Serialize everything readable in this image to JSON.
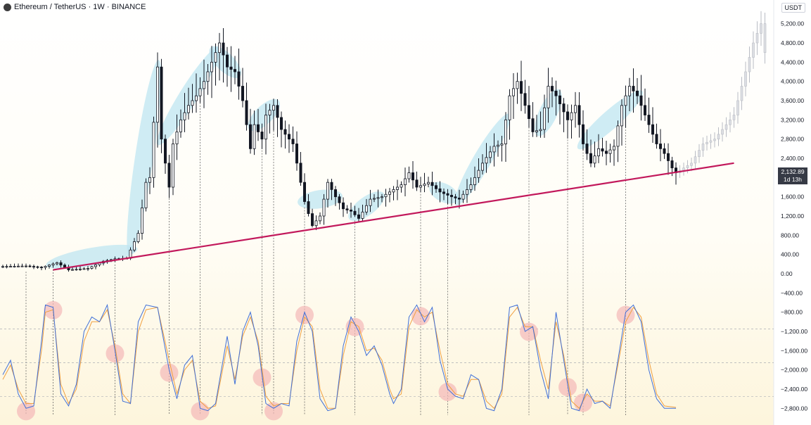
{
  "header": {
    "symbol": "Ethereum / TetherUS · 1W · BINANCE"
  },
  "currency": "USDT",
  "price_tag": {
    "price": "2,132.89",
    "countdown": "1d 13h"
  },
  "colors": {
    "candle": "#131722",
    "highlight": "#bfe6f2",
    "trendline": "#c2185b",
    "stoch_k": "#3f6fd8",
    "stoch_d": "#f0a040",
    "circle": "#f4b8b8"
  },
  "chart_data": {
    "type": "candlestick",
    "yticks": [
      "5,200.00",
      "4,800.00",
      "4,400.00",
      "4,000.00",
      "3,600.00",
      "3,200.00",
      "2,800.00",
      "2,400.00",
      "2,000.00",
      "1,600.00",
      "1,200.00",
      "800.00",
      "400.00",
      "0.00",
      "−400.00",
      "−800.00",
      "−1,200.00",
      "−1,600.00",
      "−2,000.00",
      "−2,400.00",
      "−2,800.00"
    ],
    "ylim": [
      -3000,
      5400
    ],
    "price_path": [
      [
        0,
        150
      ],
      [
        6,
        160
      ],
      [
        10,
        130
      ],
      [
        14,
        230
      ],
      [
        17,
        80
      ],
      [
        22,
        110
      ],
      [
        26,
        260
      ],
      [
        29,
        310
      ],
      [
        32,
        320
      ],
      [
        35,
        840
      ],
      [
        37,
        1900
      ],
      [
        38,
        2000
      ],
      [
        40,
        4300
      ],
      [
        41,
        2800
      ],
      [
        43,
        1800
      ],
      [
        44,
        2700
      ],
      [
        46,
        3200
      ],
      [
        48,
        3500
      ],
      [
        50,
        3700
      ],
      [
        52,
        4000
      ],
      [
        54,
        4400
      ],
      [
        56,
        4800
      ],
      [
        58,
        4300
      ],
      [
        60,
        4200
      ],
      [
        62,
        3600
      ],
      [
        64,
        2600
      ],
      [
        65,
        3100
      ],
      [
        67,
        2800
      ],
      [
        68,
        3300
      ],
      [
        70,
        3500
      ],
      [
        72,
        3000
      ],
      [
        75,
        2700
      ],
      [
        78,
        1500
      ],
      [
        80,
        1000
      ],
      [
        82,
        1200
      ],
      [
        84,
        1900
      ],
      [
        86,
        1600
      ],
      [
        88,
        1350
      ],
      [
        90,
        1300
      ],
      [
        92,
        1150
      ],
      [
        95,
        1550
      ],
      [
        98,
        1600
      ],
      [
        100,
        1700
      ],
      [
        103,
        1850
      ],
      [
        105,
        2100
      ],
      [
        107,
        1800
      ],
      [
        110,
        1900
      ],
      [
        113,
        1700
      ],
      [
        116,
        1600
      ],
      [
        118,
        1550
      ],
      [
        121,
        1850
      ],
      [
        124,
        2300
      ],
      [
        127,
        2650
      ],
      [
        129,
        2700
      ],
      [
        131,
        3700
      ],
      [
        133,
        4000
      ],
      [
        135,
        3500
      ],
      [
        137,
        2950
      ],
      [
        139,
        3000
      ],
      [
        141,
        3900
      ],
      [
        143,
        3700
      ],
      [
        146,
        3200
      ],
      [
        148,
        3500
      ],
      [
        150,
        2700
      ],
      [
        152,
        2300
      ],
      [
        154,
        2600
      ],
      [
        156,
        2500
      ],
      [
        158,
        2650
      ],
      [
        160,
        3500
      ],
      [
        162,
        3900
      ],
      [
        164,
        3700
      ],
      [
        166,
        3300
      ],
      [
        169,
        2700
      ],
      [
        171,
        2500
      ],
      [
        173,
        2200
      ],
      [
        174,
        2100
      ]
    ],
    "projection_path": [
      [
        174,
        2100
      ],
      [
        178,
        2300
      ],
      [
        181,
        2700
      ],
      [
        184,
        2800
      ],
      [
        186,
        3000
      ],
      [
        189,
        3300
      ],
      [
        192,
        4200
      ],
      [
        194,
        4800
      ],
      [
        196,
        5200
      ],
      [
        197,
        4600
      ]
    ],
    "trendline": {
      "from": [
        13,
        80
      ],
      "to": [
        189,
        2300
      ]
    },
    "highlights": [
      {
        "from": 13,
        "to": 33
      },
      {
        "from": 33,
        "to": 40
      },
      {
        "from": 41,
        "to": 55
      },
      {
        "from": 55,
        "to": 60
      },
      {
        "from": 65,
        "to": 70
      },
      {
        "from": 78,
        "to": 86
      },
      {
        "from": 91,
        "to": 97
      },
      {
        "from": 112,
        "to": 116
      },
      {
        "from": 118,
        "to": 130
      },
      {
        "from": 139,
        "to": 143
      },
      {
        "from": 150,
        "to": 164
      }
    ],
    "stoch_lower": -2850,
    "stoch_upper": -650,
    "stoch_k": [
      [
        0,
        -2100
      ],
      [
        2,
        -1800
      ],
      [
        4,
        -2500
      ],
      [
        6,
        -2800
      ],
      [
        8,
        -2750
      ],
      [
        10,
        -1400
      ],
      [
        11,
        -650
      ],
      [
        13,
        -700
      ],
      [
        15,
        -2500
      ],
      [
        17,
        -2750
      ],
      [
        19,
        -2300
      ],
      [
        21,
        -1200
      ],
      [
        23,
        -900
      ],
      [
        25,
        -1000
      ],
      [
        27,
        -650
      ],
      [
        29,
        -1600
      ],
      [
        31,
        -2650
      ],
      [
        33,
        -2700
      ],
      [
        35,
        -1000
      ],
      [
        37,
        -650
      ],
      [
        40,
        -700
      ],
      [
        43,
        -2000
      ],
      [
        45,
        -2600
      ],
      [
        47,
        -1900
      ],
      [
        49,
        -1700
      ],
      [
        51,
        -2800
      ],
      [
        53,
        -2850
      ],
      [
        55,
        -2700
      ],
      [
        58,
        -1300
      ],
      [
        60,
        -2300
      ],
      [
        62,
        -1200
      ],
      [
        64,
        -800
      ],
      [
        66,
        -1500
      ],
      [
        68,
        -2700
      ],
      [
        70,
        -2800
      ],
      [
        72,
        -2700
      ],
      [
        74,
        -2750
      ],
      [
        76,
        -1400
      ],
      [
        78,
        -800
      ],
      [
        80,
        -1200
      ],
      [
        82,
        -2600
      ],
      [
        84,
        -2850
      ],
      [
        86,
        -2800
      ],
      [
        88,
        -1500
      ],
      [
        90,
        -900
      ],
      [
        92,
        -1200
      ],
      [
        94,
        -1700
      ],
      [
        96,
        -1500
      ],
      [
        98,
        -1900
      ],
      [
        100,
        -2500
      ],
      [
        101,
        -2700
      ],
      [
        103,
        -2400
      ],
      [
        105,
        -900
      ],
      [
        107,
        -650
      ],
      [
        109,
        -1000
      ],
      [
        111,
        -700
      ],
      [
        113,
        -1800
      ],
      [
        115,
        -2400
      ],
      [
        117,
        -2550
      ],
      [
        119,
        -2600
      ],
      [
        121,
        -2100
      ],
      [
        123,
        -2200
      ],
      [
        125,
        -2800
      ],
      [
        127,
        -2850
      ],
      [
        129,
        -2400
      ],
      [
        131,
        -700
      ],
      [
        133,
        -650
      ],
      [
        135,
        -1200
      ],
      [
        137,
        -1100
      ],
      [
        139,
        -2000
      ],
      [
        141,
        -2600
      ],
      [
        143,
        -800
      ],
      [
        145,
        -1800
      ],
      [
        147,
        -2800
      ],
      [
        149,
        -2850
      ],
      [
        151,
        -2400
      ],
      [
        153,
        -2700
      ],
      [
        155,
        -2650
      ],
      [
        157,
        -2800
      ],
      [
        159,
        -1800
      ],
      [
        161,
        -800
      ],
      [
        163,
        -650
      ],
      [
        165,
        -1000
      ],
      [
        167,
        -2000
      ],
      [
        169,
        -2600
      ],
      [
        171,
        -2800
      ],
      [
        174,
        -2800
      ]
    ],
    "stoch_d": [
      [
        0,
        -2200
      ],
      [
        2,
        -1900
      ],
      [
        4,
        -2400
      ],
      [
        6,
        -2700
      ],
      [
        8,
        -2700
      ],
      [
        10,
        -1600
      ],
      [
        11,
        -800
      ],
      [
        13,
        -750
      ],
      [
        15,
        -2300
      ],
      [
        17,
        -2700
      ],
      [
        19,
        -2400
      ],
      [
        21,
        -1400
      ],
      [
        23,
        -1000
      ],
      [
        25,
        -1000
      ],
      [
        27,
        -750
      ],
      [
        29,
        -1500
      ],
      [
        31,
        -2500
      ],
      [
        33,
        -2700
      ],
      [
        35,
        -1200
      ],
      [
        37,
        -750
      ],
      [
        40,
        -700
      ],
      [
        43,
        -1800
      ],
      [
        45,
        -2500
      ],
      [
        47,
        -2000
      ],
      [
        49,
        -1800
      ],
      [
        51,
        -2650
      ],
      [
        53,
        -2800
      ],
      [
        55,
        -2750
      ],
      [
        58,
        -1500
      ],
      [
        60,
        -2200
      ],
      [
        62,
        -1300
      ],
      [
        64,
        -900
      ],
      [
        66,
        -1400
      ],
      [
        68,
        -2550
      ],
      [
        70,
        -2750
      ],
      [
        72,
        -2700
      ],
      [
        74,
        -2700
      ],
      [
        76,
        -1600
      ],
      [
        78,
        -900
      ],
      [
        80,
        -1100
      ],
      [
        82,
        -2400
      ],
      [
        84,
        -2800
      ],
      [
        86,
        -2800
      ],
      [
        88,
        -1700
      ],
      [
        90,
        -1000
      ],
      [
        92,
        -1100
      ],
      [
        94,
        -1600
      ],
      [
        96,
        -1550
      ],
      [
        98,
        -1800
      ],
      [
        100,
        -2400
      ],
      [
        101,
        -2600
      ],
      [
        103,
        -2500
      ],
      [
        105,
        -1100
      ],
      [
        107,
        -750
      ],
      [
        109,
        -900
      ],
      [
        111,
        -800
      ],
      [
        113,
        -1600
      ],
      [
        115,
        -2300
      ],
      [
        117,
        -2500
      ],
      [
        119,
        -2550
      ],
      [
        121,
        -2200
      ],
      [
        123,
        -2200
      ],
      [
        125,
        -2650
      ],
      [
        127,
        -2800
      ],
      [
        129,
        -2500
      ],
      [
        131,
        -900
      ],
      [
        133,
        -700
      ],
      [
        135,
        -1100
      ],
      [
        137,
        -1100
      ],
      [
        139,
        -1800
      ],
      [
        141,
        -2400
      ],
      [
        143,
        -1000
      ],
      [
        145,
        -1700
      ],
      [
        147,
        -2650
      ],
      [
        149,
        -2800
      ],
      [
        151,
        -2500
      ],
      [
        153,
        -2650
      ],
      [
        155,
        -2650
      ],
      [
        157,
        -2750
      ],
      [
        159,
        -1900
      ],
      [
        161,
        -1000
      ],
      [
        163,
        -700
      ],
      [
        165,
        -900
      ],
      [
        167,
        -1800
      ],
      [
        169,
        -2500
      ],
      [
        171,
        -2750
      ],
      [
        174,
        -2780
      ]
    ],
    "circles": [
      6,
      13,
      29,
      43,
      51,
      67,
      70,
      78,
      91,
      108,
      115,
      136,
      146,
      150,
      161
    ],
    "drop_lines": [
      6,
      13,
      29,
      43,
      51,
      67,
      70,
      78,
      91,
      108,
      115,
      136,
      146,
      150,
      161
    ],
    "hlines": [
      -1150,
      -1850,
      -2550
    ]
  }
}
